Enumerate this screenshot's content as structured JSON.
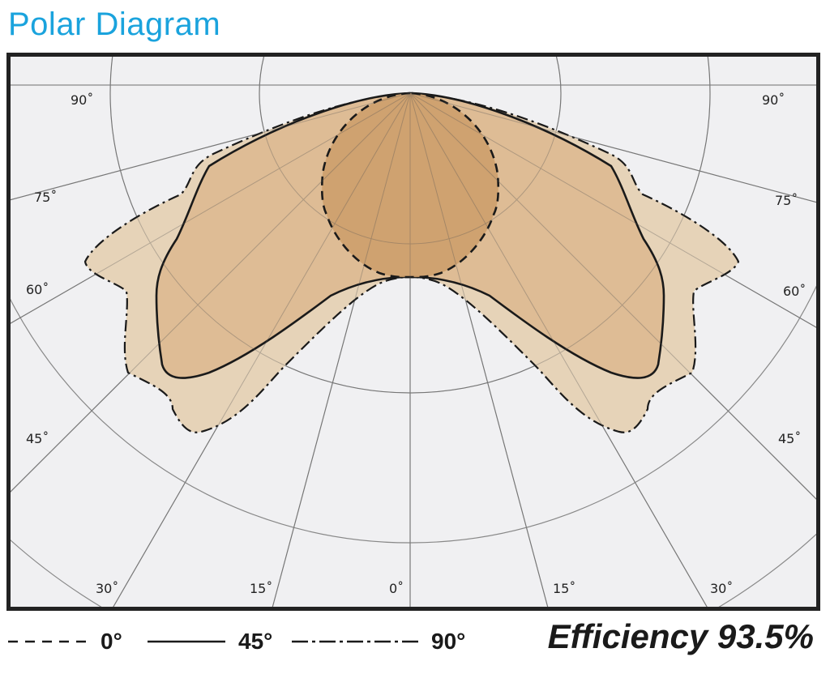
{
  "title": "Polar Diagram",
  "angle_labels": {
    "left_90": "90˚",
    "left_75": "75˚",
    "left_60": "60˚",
    "left_45": "45˚",
    "bottom_30_left": "30˚",
    "bottom_15_left": "15˚",
    "bottom_0": "0˚",
    "bottom_15_right": "15˚",
    "bottom_30_right": "30˚",
    "right_90": "90˚",
    "right_75": "75˚",
    "right_60": "60˚",
    "right_45": "45˚"
  },
  "legend": [
    {
      "label": "0°",
      "line_style": "dashed"
    },
    {
      "label": "45°",
      "line_style": "solid"
    },
    {
      "label": "90°",
      "line_style": "dash-dot"
    }
  ],
  "efficiency": "Efficiency 93.5%",
  "colors": {
    "title": "#1aa3dd",
    "plot_background": "#f0f0f2",
    "grid": "#888888",
    "fill_90": "#e6d3b8",
    "fill_45": "#dbb48a",
    "fill_0": "#cc9e6a",
    "outline": "#1a1a1a"
  }
}
